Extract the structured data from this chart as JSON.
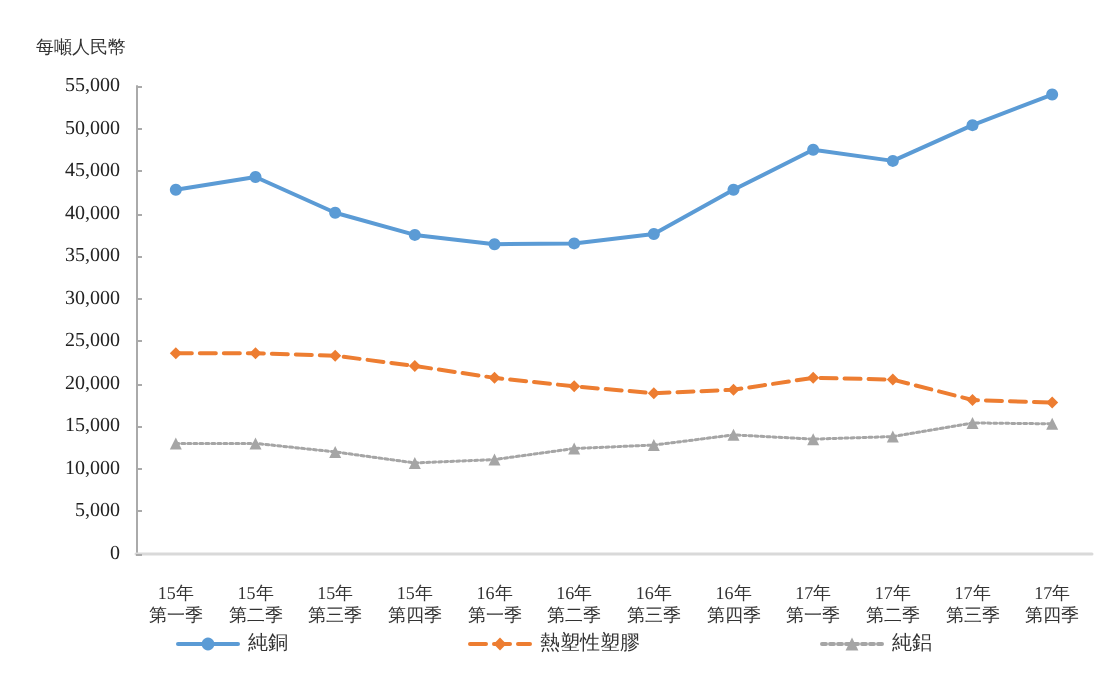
{
  "chart_data": {
    "type": "line",
    "ylabel": "每噸人民幣",
    "categories": [
      "15年第一季",
      "15年第二季",
      "15年第三季",
      "15年第四季",
      "16年第一季",
      "16年第二季",
      "16年第三季",
      "16年第四季",
      "17年第一季",
      "17年第二季",
      "17年第三季",
      "17年第四季"
    ],
    "series": [
      {
        "name": "純銅",
        "color": "#5b9bd5",
        "marker": "circle",
        "line_style": "solid",
        "values": [
          42800,
          44300,
          40100,
          37500,
          36400,
          36500,
          37600,
          42800,
          47500,
          46200,
          50400,
          54000
        ]
      },
      {
        "name": "熱塑性塑膠",
        "color": "#ed7d31",
        "marker": "diamond",
        "line_style": "dashed",
        "values": [
          23600,
          23600,
          23300,
          22100,
          20700,
          19700,
          18900,
          19300,
          20700,
          20500,
          18100,
          17800
        ]
      },
      {
        "name": "純鋁",
        "color": "#a5a5a5",
        "marker": "triangle",
        "line_style": "dotted",
        "values": [
          13000,
          13000,
          12000,
          10700,
          11100,
          12400,
          12800,
          14000,
          13500,
          13800,
          15400,
          15300
        ]
      }
    ],
    "ylim": [
      0,
      55000
    ],
    "yticks": [
      0,
      {
        "value": 5000,
        "label": "5,000"
      },
      {
        "value": 10000,
        "label": "10,000"
      },
      {
        "value": 15000,
        "label": "15,000"
      },
      {
        "value": 20000,
        "label": "20,000"
      },
      {
        "value": 25000,
        "label": "25,000"
      },
      {
        "value": 30000,
        "label": "30,000"
      },
      {
        "value": 35000,
        "label": "35,000"
      },
      {
        "value": 40000,
        "label": "40,000"
      },
      {
        "value": 45000,
        "label": "45,000"
      },
      {
        "value": 50000,
        "label": "50,000"
      },
      {
        "value": 55000,
        "label": "55,000"
      }
    ],
    "grid": false,
    "legend": "bottom"
  }
}
